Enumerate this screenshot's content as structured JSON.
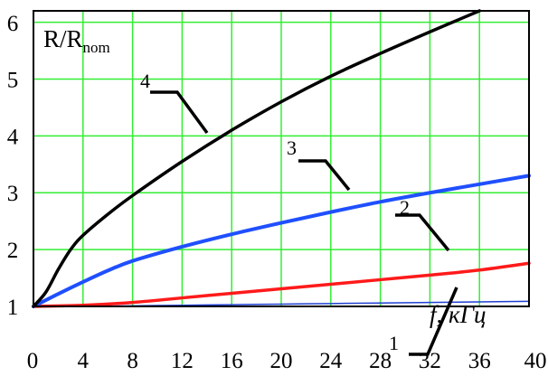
{
  "chart_data": {
    "type": "line",
    "ylabel_main": "R/R",
    "ylabel_sub": "nom",
    "xlabel": "f, кГц",
    "xlim": [
      0,
      40
    ],
    "ylim": [
      1,
      6.2
    ],
    "xticks": [
      "0",
      "4",
      "8",
      "12",
      "16",
      "20",
      "24",
      "28",
      "32",
      "36",
      "40"
    ],
    "yticks": [
      "1",
      "2",
      "3",
      "4",
      "5",
      "6"
    ],
    "grid": true,
    "series": [
      {
        "name": "1",
        "color": "#1f3fd0",
        "x": [
          0,
          4,
          8,
          12,
          16,
          20,
          24,
          28,
          32,
          36,
          40
        ],
        "y": [
          1.0,
          1.0,
          1.01,
          1.02,
          1.03,
          1.04,
          1.05,
          1.06,
          1.07,
          1.08,
          1.09
        ]
      },
      {
        "name": "2",
        "color": "#ff1a1a",
        "x": [
          0,
          4,
          8,
          12,
          16,
          20,
          24,
          28,
          32,
          36,
          40
        ],
        "y": [
          1.0,
          1.02,
          1.07,
          1.15,
          1.23,
          1.31,
          1.39,
          1.47,
          1.55,
          1.64,
          1.76
        ]
      },
      {
        "name": "3",
        "color": "#1f4fff",
        "x": [
          0,
          2,
          4,
          6,
          8,
          12,
          16,
          20,
          24,
          28,
          32,
          36,
          40
        ],
        "y": [
          1.0,
          1.22,
          1.43,
          1.63,
          1.8,
          2.05,
          2.27,
          2.47,
          2.66,
          2.84,
          3.0,
          3.15,
          3.3
        ]
      },
      {
        "name": "4",
        "color": "#000000",
        "x": [
          0,
          1,
          2,
          3,
          4,
          6,
          8,
          12,
          16,
          20,
          24,
          28,
          32,
          36
        ],
        "y": [
          1.0,
          1.25,
          1.65,
          2.0,
          2.25,
          2.62,
          2.95,
          3.55,
          4.1,
          4.6,
          5.05,
          5.45,
          5.83,
          6.2
        ]
      }
    ],
    "labels": [
      "1",
      "2",
      "3",
      "4"
    ]
  }
}
